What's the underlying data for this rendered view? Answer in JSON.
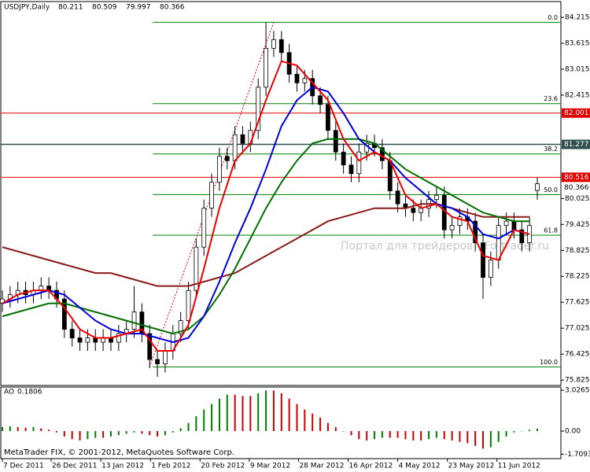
{
  "chart_data": {
    "type": "candlestick",
    "title": "USDJPY,Daily",
    "open": [
      77.6,
      77.7,
      77.8,
      77.9,
      77.8,
      77.9,
      78.0,
      77.9,
      77.7,
      77.0,
      76.8,
      76.7,
      76.8,
      76.7,
      76.8,
      76.7,
      76.9,
      77.0,
      77.4,
      76.9,
      76.3,
      76.2,
      76.5,
      76.9,
      77.2,
      77.9,
      78.9,
      79.8,
      80.4,
      81.0,
      80.9,
      81.5,
      81.3,
      81.6,
      82.6,
      83.5,
      83.7,
      83.4,
      82.9,
      82.7,
      82.8,
      82.4,
      82.2,
      81.6,
      81.1,
      80.8,
      80.6,
      81.1,
      81.3,
      81.2,
      80.9,
      80.2,
      79.9,
      79.8,
      79.7,
      79.8,
      80.0,
      80.1,
      79.3,
      79.4,
      79.6,
      79.5,
      79.0,
      78.2,
      78.6,
      79.4,
      79.5,
      79.3,
      79.0,
      80.211
    ],
    "high": [
      77.9,
      78.0,
      78.1,
      78.1,
      78.1,
      78.2,
      78.2,
      78.1,
      77.9,
      77.2,
      77.0,
      77.0,
      77.0,
      77.0,
      77.0,
      77.1,
      77.2,
      78.0,
      77.6,
      77.1,
      76.5,
      76.7,
      77.1,
      77.4,
      78.1,
      79.1,
      80.0,
      80.6,
      81.2,
      81.2,
      81.7,
      81.7,
      81.8,
      82.8,
      84.1,
      83.9,
      83.9,
      83.6,
      83.1,
      83.0,
      83.0,
      82.6,
      82.4,
      81.8,
      81.3,
      81.0,
      81.3,
      81.5,
      81.5,
      81.4,
      81.1,
      80.4,
      80.1,
      80.0,
      80.0,
      80.2,
      80.3,
      80.3,
      79.6,
      79.8,
      79.8,
      79.7,
      79.2,
      78.8,
      79.6,
      79.7,
      79.7,
      79.5,
      79.6,
      80.509
    ],
    "low": [
      77.4,
      77.5,
      77.6,
      77.6,
      77.6,
      77.7,
      77.7,
      77.5,
      76.8,
      76.6,
      76.5,
      76.5,
      76.5,
      76.5,
      76.5,
      76.5,
      76.7,
      76.8,
      76.7,
      76.1,
      75.9,
      76.0,
      76.3,
      76.7,
      77.0,
      77.7,
      78.7,
      79.6,
      80.2,
      80.7,
      80.7,
      81.1,
      81.1,
      81.4,
      82.4,
      83.3,
      83.2,
      82.7,
      82.5,
      82.5,
      82.2,
      82.0,
      81.4,
      80.9,
      80.6,
      80.4,
      80.4,
      80.9,
      81.0,
      80.7,
      80.0,
      79.7,
      79.6,
      79.5,
      79.5,
      79.6,
      79.8,
      79.1,
      79.1,
      79.2,
      79.3,
      78.8,
      77.7,
      78.0,
      78.4,
      79.2,
      79.1,
      78.8,
      78.8,
      79.997
    ],
    "close": [
      77.7,
      77.8,
      77.9,
      77.8,
      77.9,
      78.0,
      77.9,
      77.7,
      77.0,
      76.8,
      76.7,
      76.8,
      76.7,
      76.8,
      76.7,
      76.9,
      77.0,
      77.4,
      76.9,
      76.3,
      76.2,
      76.5,
      76.9,
      77.2,
      77.9,
      78.9,
      79.8,
      80.4,
      81.0,
      80.9,
      81.5,
      81.3,
      81.6,
      82.6,
      83.5,
      83.7,
      83.4,
      82.9,
      82.7,
      82.8,
      82.4,
      82.2,
      81.6,
      81.1,
      80.8,
      80.6,
      81.1,
      81.3,
      81.2,
      80.9,
      80.2,
      79.9,
      79.8,
      79.7,
      79.8,
      80.0,
      80.1,
      79.3,
      79.4,
      79.6,
      79.5,
      79.0,
      78.2,
      78.6,
      79.4,
      79.5,
      79.3,
      79.0,
      79.4,
      80.366
    ],
    "up_color": "#ffffff",
    "down_color": "#000000",
    "ylim": [
      75.7,
      84.58
    ],
    "yticks": [
      84.215,
      83.615,
      83.015,
      82.415,
      80.025,
      79.425,
      78.825,
      78.225,
      77.625,
      77.025,
      76.425,
      75.825
    ],
    "xticks": [
      {
        "value": 0,
        "label": "7 Dec 2011"
      },
      {
        "value": 6.29,
        "label": "26 Dec 2011"
      },
      {
        "value": 12.7,
        "label": "13 Jan 2012"
      },
      {
        "value": 19.1,
        "label": "1 Feb 2012"
      },
      {
        "value": 25.5,
        "label": "20 Feb 2012"
      },
      {
        "value": 31.85,
        "label": "9 Mar 2012"
      },
      {
        "value": 38.2,
        "label": "28 Mar 2012"
      },
      {
        "value": 44.6,
        "label": "16 Apr 2012"
      },
      {
        "value": 51.0,
        "label": "4 May 2012"
      },
      {
        "value": 57.4,
        "label": "23 May 2012"
      },
      {
        "value": 63.8,
        "label": "11 Jun 2012"
      }
    ],
    "ma_x": [
      0,
      2,
      4,
      6,
      8,
      10,
      12,
      14,
      16,
      18,
      20,
      22,
      24,
      26,
      28,
      30,
      32,
      34,
      36,
      38,
      40,
      42,
      44,
      46,
      48,
      50,
      52,
      54,
      56,
      58,
      60,
      62,
      64,
      66,
      68
    ],
    "series": [
      {
        "color": "#8b1a1a",
        "values": [
          78.9,
          78.8,
          78.7,
          78.6,
          78.5,
          78.4,
          78.3,
          78.3,
          78.2,
          78.1,
          78.0,
          78.0,
          78.0,
          78.1,
          78.2,
          78.3,
          78.5,
          78.7,
          78.9,
          79.1,
          79.3,
          79.5,
          79.6,
          79.7,
          79.8,
          79.8,
          79.8,
          79.9,
          79.9,
          79.8,
          79.7,
          79.6,
          79.6,
          79.6,
          79.6
        ]
      },
      {
        "color": "#007000",
        "values": [
          77.3,
          77.4,
          77.5,
          77.6,
          77.6,
          77.5,
          77.4,
          77.3,
          77.2,
          77.1,
          77.0,
          76.9,
          77.0,
          77.3,
          77.8,
          78.4,
          79.1,
          79.8,
          80.4,
          80.9,
          81.3,
          81.4,
          81.4,
          81.4,
          81.3,
          81.0,
          80.7,
          80.5,
          80.3,
          80.1,
          79.9,
          79.7,
          79.6,
          79.5,
          79.5
        ]
      },
      {
        "color": "#0000dd",
        "values": [
          77.6,
          77.7,
          77.8,
          77.9,
          77.8,
          77.5,
          77.2,
          77.0,
          76.9,
          76.9,
          76.8,
          76.7,
          76.8,
          77.3,
          78.1,
          79.0,
          79.8,
          80.7,
          81.7,
          82.3,
          82.6,
          82.5,
          82.0,
          81.4,
          81.1,
          80.9,
          80.5,
          80.2,
          79.9,
          79.8,
          79.6,
          79.2,
          79.1,
          79.3,
          79.2
        ]
      },
      {
        "color": "#ee0000",
        "values": [
          77.6,
          77.8,
          77.9,
          77.9,
          77.5,
          77.0,
          76.8,
          76.8,
          76.9,
          77.0,
          76.5,
          76.5,
          77.1,
          78.4,
          79.8,
          80.9,
          81.3,
          82.3,
          83.2,
          83.1,
          82.7,
          82.3,
          81.4,
          80.9,
          81.1,
          80.9,
          80.1,
          79.8,
          79.9,
          79.6,
          79.5,
          78.7,
          78.6,
          79.3,
          79.2
        ]
      }
    ],
    "levels": [
      {
        "value": 82.001,
        "color": "#e00000"
      },
      {
        "value": 81.277,
        "color": "#2f4f4f"
      },
      {
        "value": 80.516,
        "color": "#e00000"
      }
    ],
    "fibo": {
      "high": 84.1,
      "low": 76.13,
      "start": 19,
      "end": 35,
      "color": "#008000",
      "trend_color": "#e00000",
      "levels": [
        {
          "value": 0,
          "label": "0.0"
        },
        23.6,
        38.2,
        {
          "value": 50,
          "label": "50.0"
        },
        61.8,
        {
          "value": 100,
          "label": "100.0"
        }
      ]
    },
    "watermark": "Портал для трейдеров - Fortrader.ru",
    "copyright": "MetaTrader FIX, © 2001-2012, MetaQuotes Software Corp.",
    "indicator": {
      "type": "bar",
      "title": "AO",
      "values": [
        0.3,
        0.35,
        0.3,
        0.25,
        0.3,
        0.2,
        0.1,
        -0.1,
        -0.4,
        -0.6,
        -0.7,
        -0.6,
        -0.5,
        -0.5,
        -0.4,
        -0.3,
        -0.2,
        -0.1,
        -0.2,
        -0.3,
        -0.4,
        -0.3,
        -0.1,
        0.2,
        0.6,
        1.1,
        1.6,
        2.0,
        2.4,
        2.7,
        2.7,
        2.6,
        2.6,
        2.8,
        3.0,
        3.0,
        2.8,
        2.4,
        2.0,
        1.6,
        1.3,
        1.0,
        0.6,
        0.3,
        0.0,
        -0.3,
        -0.6,
        -0.7,
        -0.6,
        -0.5,
        -0.5,
        -0.5,
        -0.6,
        -0.7,
        -0.7,
        -0.6,
        -0.5,
        -0.6,
        -0.7,
        -0.8,
        -0.9,
        -1.1,
        -1.3,
        -1.2,
        -0.8,
        -0.4,
        -0.1,
        0.0,
        0.1,
        0.1806
      ],
      "up_color": "#008000",
      "down_color": "#cc0000",
      "ylim": [
        -2.04,
        3.26
      ],
      "yticks": [
        3.0265,
        {
          "value": 0,
          "label": "0.00"
        },
        -1.7093
      ]
    }
  }
}
